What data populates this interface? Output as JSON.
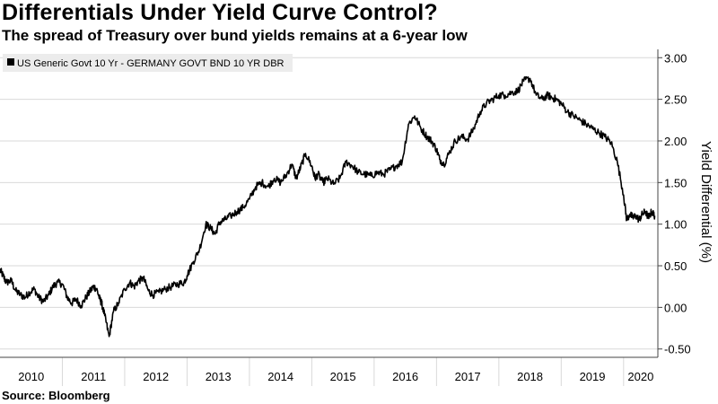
{
  "header": {
    "title": "Differentials Under Yield Curve Control?",
    "subtitle": "The spread of Treasury over bund yields remains at a 6-year low"
  },
  "footer": {
    "source": "Source: Bloomberg"
  },
  "colors": {
    "line": "#000000",
    "grid": "#d9d9d9",
    "axis": "#444444",
    "legend_bg": "#ececec"
  },
  "chart_data": {
    "type": "line",
    "title": "Differentials Under Yield Curve Control?",
    "subtitle": "The spread of Treasury over bund yields remains at a 6-year low",
    "ylabel": "Yield Differential (%)",
    "xlabel": "",
    "ylim": [
      -0.6,
      3.1
    ],
    "xlim": [
      2010.0,
      2020.55
    ],
    "y_ticks": [
      -0.5,
      0.0,
      0.5,
      1.0,
      1.5,
      2.0,
      2.5,
      3.0
    ],
    "y_tick_labels": [
      "-0.50",
      "0.00",
      "0.50",
      "1.00",
      "1.50",
      "2.00",
      "2.50",
      "3.00"
    ],
    "x_tick_labels": [
      "2010",
      "2011",
      "2012",
      "2013",
      "2014",
      "2015",
      "2016",
      "2017",
      "2018",
      "2019",
      "2020"
    ],
    "x_tick_years": [
      2010,
      2011,
      2012,
      2013,
      2014,
      2015,
      2016,
      2017,
      2018,
      2019,
      2020
    ],
    "grid": true,
    "legend_position": "top-left",
    "series": [
      {
        "name": "US Generic Govt 10 Yr - GERMANY GOVT BND 10 YR DBR",
        "x": [
          2010.0,
          2010.05,
          2010.1,
          2010.18,
          2010.25,
          2010.33,
          2010.4,
          2010.47,
          2010.55,
          2010.62,
          2010.7,
          2010.78,
          2010.85,
          2010.92,
          2011.0,
          2011.08,
          2011.15,
          2011.22,
          2011.3,
          2011.38,
          2011.45,
          2011.5,
          2011.55,
          2011.6,
          2011.63,
          2011.68,
          2011.75,
          2011.82,
          2011.9,
          2012.0,
          2012.08,
          2012.15,
          2012.22,
          2012.3,
          2012.38,
          2012.45,
          2012.55,
          2012.65,
          2012.75,
          2012.85,
          2012.95,
          2013.0,
          2013.1,
          2013.2,
          2013.3,
          2013.38,
          2013.45,
          2013.52,
          2013.6,
          2013.7,
          2013.8,
          2013.9,
          2014.0,
          2014.1,
          2014.2,
          2014.3,
          2014.4,
          2014.5,
          2014.6,
          2014.68,
          2014.75,
          2014.82,
          2014.9,
          2015.0,
          2015.05,
          2015.1,
          2015.18,
          2015.25,
          2015.35,
          2015.45,
          2015.55,
          2015.65,
          2015.75,
          2015.85,
          2015.95,
          2016.05,
          2016.15,
          2016.25,
          2016.35,
          2016.45,
          2016.55,
          2016.65,
          2016.75,
          2016.85,
          2016.92,
          2017.0,
          2017.05,
          2017.12,
          2017.2,
          2017.3,
          2017.4,
          2017.5,
          2017.6,
          2017.7,
          2017.8,
          2017.9,
          2018.0,
          2018.1,
          2018.2,
          2018.3,
          2018.4,
          2018.5,
          2018.6,
          2018.7,
          2018.78,
          2018.85,
          2018.92,
          2019.0,
          2019.1,
          2019.2,
          2019.3,
          2019.4,
          2019.5,
          2019.6,
          2019.7,
          2019.8,
          2019.9,
          2020.0,
          2020.05,
          2020.1,
          2020.15,
          2020.2,
          2020.25,
          2020.3,
          2020.35,
          2020.4,
          2020.45,
          2020.5
        ],
        "y": [
          0.45,
          0.38,
          0.3,
          0.32,
          0.2,
          0.15,
          0.12,
          0.18,
          0.22,
          0.12,
          0.07,
          0.15,
          0.25,
          0.3,
          0.28,
          0.12,
          0.05,
          0.1,
          0.02,
          0.12,
          0.2,
          0.25,
          0.22,
          0.1,
          0.05,
          -0.1,
          -0.35,
          -0.05,
          0.05,
          0.22,
          0.3,
          0.25,
          0.32,
          0.35,
          0.2,
          0.15,
          0.18,
          0.22,
          0.25,
          0.28,
          0.3,
          0.38,
          0.55,
          0.7,
          1.0,
          0.95,
          0.88,
          1.02,
          1.05,
          1.1,
          1.15,
          1.2,
          1.3,
          1.45,
          1.5,
          1.45,
          1.55,
          1.5,
          1.6,
          1.72,
          1.55,
          1.68,
          1.85,
          1.7,
          1.55,
          1.6,
          1.5,
          1.55,
          1.48,
          1.55,
          1.75,
          1.7,
          1.62,
          1.6,
          1.58,
          1.62,
          1.6,
          1.65,
          1.7,
          1.75,
          2.2,
          2.3,
          2.15,
          2.05,
          2.0,
          1.9,
          1.78,
          1.72,
          1.85,
          2.0,
          2.05,
          2.02,
          2.15,
          2.35,
          2.45,
          2.5,
          2.55,
          2.55,
          2.58,
          2.6,
          2.72,
          2.75,
          2.55,
          2.5,
          2.55,
          2.52,
          2.5,
          2.45,
          2.35,
          2.3,
          2.25,
          2.2,
          2.15,
          2.1,
          2.05,
          1.98,
          1.75,
          1.35,
          1.05,
          1.12,
          1.08,
          1.1,
          1.05,
          1.12,
          1.15,
          1.08,
          1.15,
          1.1
        ]
      }
    ]
  }
}
